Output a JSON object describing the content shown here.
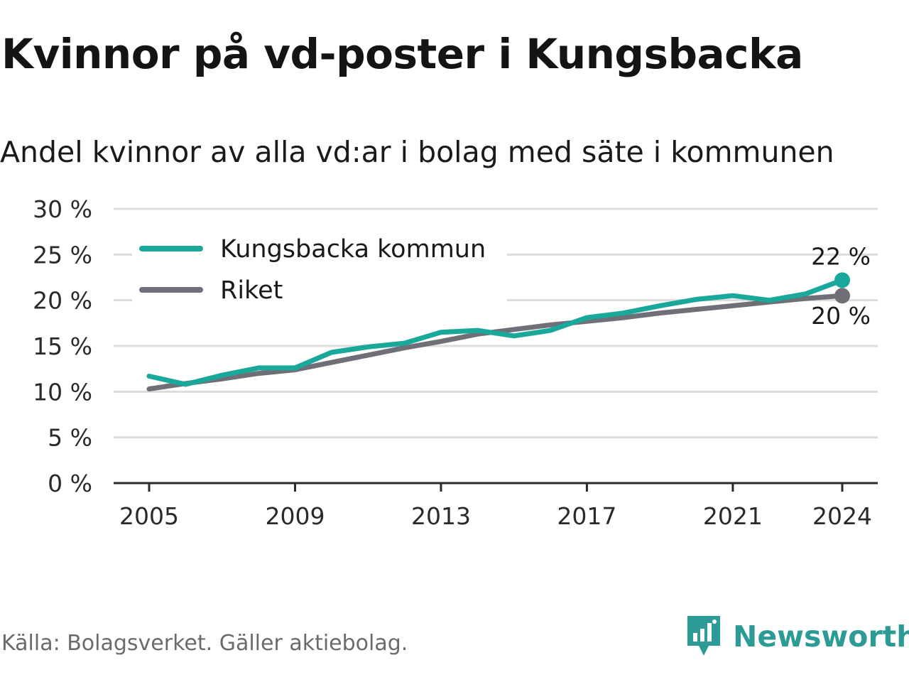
{
  "title": "Kvinnor på vd-poster i Kungsbacka",
  "subtitle": "Andel kvinnor av alla vd:ar i bolag med säte i kommunen",
  "source": "Källa: Bolagsverket. Gäller aktiebolag.",
  "brand": {
    "name": "Newsworthy",
    "icon": "newsworthy-logo-icon",
    "color": "#2d9b95"
  },
  "chart_data": {
    "type": "line",
    "title": "Kvinnor på vd-poster i Kungsbacka",
    "subtitle": "Andel kvinnor av alla vd:ar i bolag med säte i kommunen",
    "xlabel": "",
    "ylabel": "",
    "xlim": [
      2005,
      2024
    ],
    "ylim": [
      0,
      30
    ],
    "grid": true,
    "legend_position": "top-left",
    "x_ticks": [
      "2005",
      "2009",
      "2013",
      "2017",
      "2021",
      "2024"
    ],
    "y_ticks": [
      "0 %",
      "5 %",
      "10 %",
      "15 %",
      "20 %",
      "25 %",
      "30 %"
    ],
    "x": [
      2005,
      2006,
      2007,
      2008,
      2009,
      2010,
      2011,
      2012,
      2013,
      2014,
      2015,
      2016,
      2017,
      2018,
      2019,
      2020,
      2021,
      2022,
      2023,
      2024
    ],
    "series": [
      {
        "name": "Kungsbacka kommun",
        "color": "#1aa89b",
        "values": [
          11.7,
          10.8,
          11.8,
          12.6,
          12.6,
          14.3,
          14.9,
          15.3,
          16.5,
          16.7,
          16.1,
          16.7,
          18.1,
          18.6,
          19.4,
          20.1,
          20.5,
          20.0,
          20.7,
          22.2
        ],
        "end_label": "22 %"
      },
      {
        "name": "Riket",
        "color": "#6f6f78",
        "values": [
          10.3,
          10.9,
          11.4,
          12.0,
          12.4,
          13.2,
          14.0,
          14.8,
          15.5,
          16.3,
          16.8,
          17.3,
          17.7,
          18.1,
          18.6,
          19.0,
          19.4,
          19.8,
          20.2,
          20.5
        ],
        "end_label": "20 %"
      }
    ]
  }
}
